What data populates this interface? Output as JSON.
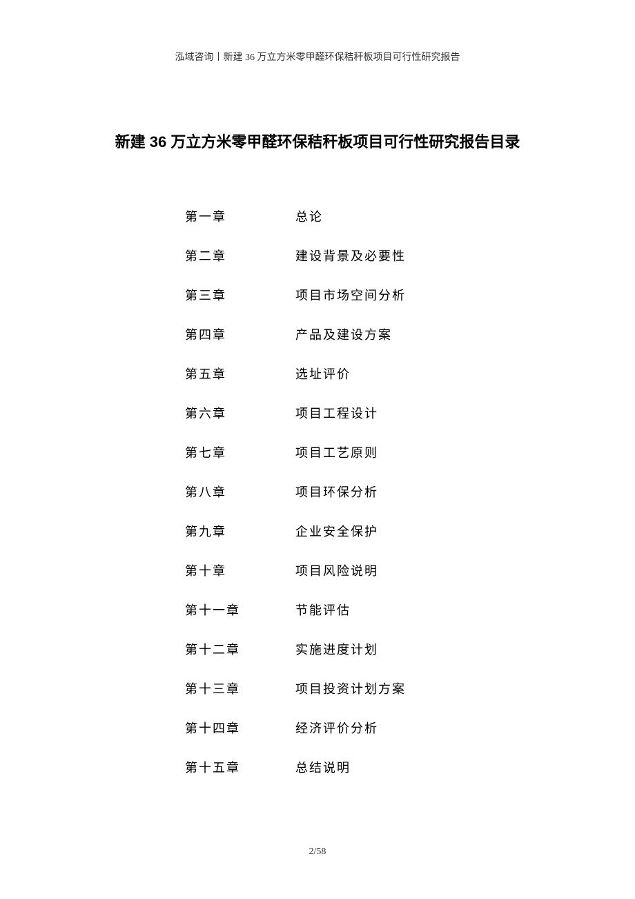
{
  "header": {
    "text": "泓域咨询丨新建 36 万立方米零甲醛环保秸秆板项目可行性研究报告"
  },
  "title": "新建 36 万立方米零甲醛环保秸秆板项目可行性研究报告目录",
  "toc": [
    {
      "chapter": "第一章",
      "name": "总论"
    },
    {
      "chapter": "第二章",
      "name": "建设背景及必要性"
    },
    {
      "chapter": "第三章",
      "name": "项目市场空间分析"
    },
    {
      "chapter": "第四章",
      "name": "产品及建设方案"
    },
    {
      "chapter": "第五章",
      "name": "选址评价"
    },
    {
      "chapter": "第六章",
      "name": "项目工程设计"
    },
    {
      "chapter": "第七章",
      "name": "项目工艺原则"
    },
    {
      "chapter": "第八章",
      "name": "项目环保分析"
    },
    {
      "chapter": "第九章",
      "name": "企业安全保护"
    },
    {
      "chapter": "第十章",
      "name": "项目风险说明"
    },
    {
      "chapter": "第十一章",
      "name": "节能评估"
    },
    {
      "chapter": "第十二章",
      "name": "实施进度计划"
    },
    {
      "chapter": "第十三章",
      "name": "项目投资计划方案"
    },
    {
      "chapter": "第十四章",
      "name": "经济评价分析"
    },
    {
      "chapter": "第十五章",
      "name": "总结说明"
    }
  ],
  "pageNumber": "2/58",
  "styling": {
    "background_color": "#ffffff",
    "text_color": "#000000",
    "header_fontsize": 14,
    "title_fontsize": 22,
    "toc_fontsize": 18,
    "page_number_fontsize": 14,
    "toc_row_spacing": 31,
    "letter_spacing": 2
  }
}
